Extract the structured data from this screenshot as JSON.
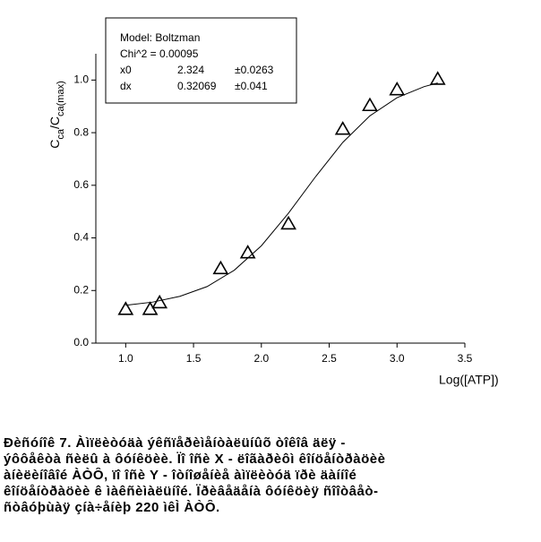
{
  "chart_data": {
    "type": "scatter",
    "y_label_parts": [
      "C",
      "ca",
      "/C",
      "ca(max)"
    ],
    "x_label": "Log([ATP])",
    "x": [
      1.0,
      1.18,
      1.25,
      1.7,
      1.9,
      2.2,
      2.6,
      2.8,
      3.0,
      3.3
    ],
    "values": [
      0.13,
      0.13,
      0.155,
      0.285,
      0.345,
      0.455,
      0.815,
      0.905,
      0.965,
      1.005
    ],
    "fit": {
      "x": [
        1.0,
        1.2,
        1.4,
        1.6,
        1.8,
        2.0,
        2.2,
        2.4,
        2.6,
        2.8,
        3.0,
        3.2,
        3.3
      ],
      "values": [
        0.144,
        0.156,
        0.178,
        0.215,
        0.277,
        0.37,
        0.494,
        0.633,
        0.763,
        0.864,
        0.933,
        0.975,
        0.989
      ]
    },
    "color": "#000000",
    "xlim": [
      0.78,
      3.5
    ],
    "ylim": [
      0,
      1.1
    ],
    "xticks": [
      {
        "value": 1,
        "label": "1.0"
      },
      1.5,
      {
        "value": 2,
        "label": "2.0"
      },
      2.5,
      {
        "value": 3,
        "label": "3.0"
      },
      3.5
    ],
    "yticks": [
      {
        "value": 0,
        "label": "0.0"
      },
      0.2,
      0.4,
      0.6,
      0.8,
      {
        "value": 1,
        "label": "1.0"
      }
    ],
    "legend_box": {
      "model": "Model: Boltzman",
      "chi": "Chi^2 = 0.00095",
      "rows": [
        [
          "x0",
          "2.324",
          "±0.0263"
        ],
        [
          "dx",
          "0.32069",
          "±0.041"
        ]
      ]
    },
    "caption": {
      "label": "Đèñóíîê",
      "number": "7.",
      "lines": [
        "Àìïëèòóäà  ýêñïåðèìåíòàëüíûõ  òîêîâ  äëÿ  -",
        "ýôôåêòà  ñèëû  à  ôóíêöèè.  Ïî  îñè  X  -  ëîãàðèôì  êîíöåíòðàöèè",
        "àíèëèíîâîé  ÀÒÔ,  ïî  îñè  Y  -  îòíîøåíèå  àìïëèòóä  ïðè  äàííîé",
        "êîíöåíòðàöèè  ê  ìàêñèìàëüíîé.  Ïðèâåäåíà  ôóíêöèÿ  ñîîòâåò-",
        "ñòâóþùàÿ  çíà÷åíèþ  220  ìêÌ  ÀÒÔ."
      ]
    }
  }
}
